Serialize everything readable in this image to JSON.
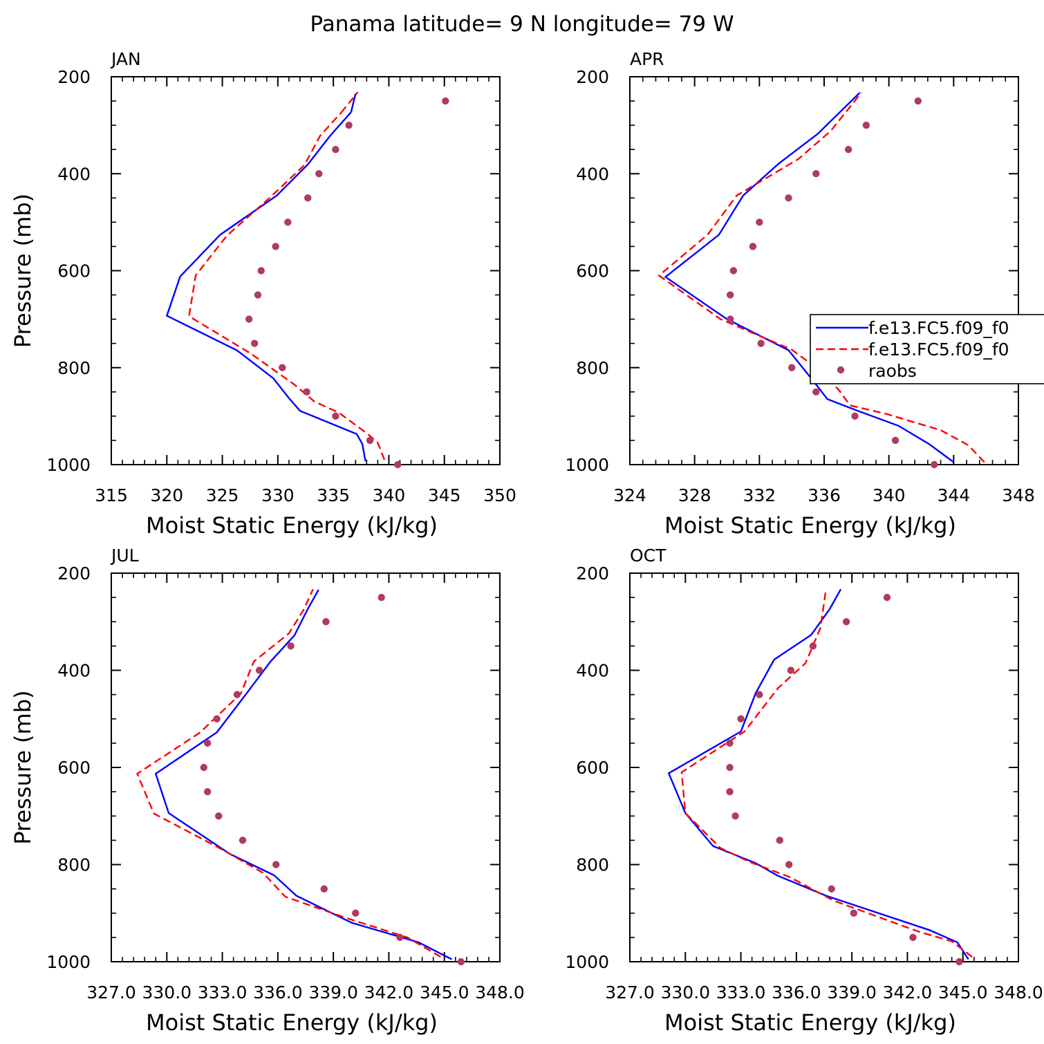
{
  "figure_title": "Panama  latitude= 9 N longitude= 79 W",
  "colors": {
    "series1": "#0000ff",
    "series2": "#ff0000",
    "raobs": "#b03a60",
    "axis": "#000000"
  },
  "legend": {
    "placement": "right of APR panel, overlapping plot area",
    "entries": [
      "f.e13.FC5.f09_f0",
      "f.e13.FC5.f09_f0",
      "raobs"
    ]
  },
  "chart_data": [
    {
      "type": "line",
      "panel": "JAN",
      "title": "JAN",
      "xlabel": "Moist Static Energy (kJ/kg)",
      "ylabel": "Pressure (mb)",
      "xlim": [
        315,
        350
      ],
      "ylim": [
        1000,
        200
      ],
      "xticks": [
        "315",
        "320",
        "325",
        "330",
        "335",
        "340",
        "345",
        "350"
      ],
      "yticks": [
        "200",
        "400",
        "600",
        "800",
        "1000"
      ],
      "series": [
        {
          "style": "solid",
          "x": [
            337.9,
            337.6,
            337.1,
            332.0,
            331.0,
            329.6,
            326.3,
            320.0,
            321.2,
            324.8,
            329.9,
            332.7,
            334.7,
            336.6
          ],
          "y": [
            993,
            957,
            937,
            889,
            863,
            822,
            764,
            693,
            612,
            526,
            445,
            381,
            322,
            273
          ]
        },
        {
          "style": "dashed",
          "x": [
            339.6,
            339.0,
            338.0,
            335.5,
            333.3,
            331.5,
            327.5,
            322.0,
            322.6,
            325.4,
            329.3,
            332.4,
            333.8,
            335.7
          ],
          "y": [
            990,
            955,
            935,
            893,
            870,
            835,
            770,
            694,
            610,
            528,
            449,
            382,
            322,
            274
          ]
        },
        {
          "style": "solid",
          "x": [
            336.6,
            337.0
          ],
          "y": [
            273,
            235
          ]
        },
        {
          "style": "dashed",
          "x": [
            335.7,
            337.2
          ],
          "y": [
            274,
            232
          ]
        },
        {
          "style": "dots",
          "x": [
            340.8,
            338.3,
            335.2,
            332.6,
            330.4,
            327.9,
            327.4,
            328.2,
            328.5,
            329.8,
            330.9,
            332.7,
            333.7,
            335.2,
            336.4,
            345.1
          ],
          "y": [
            1000,
            950,
            900,
            850,
            800,
            750,
            700,
            650,
            600,
            550,
            500,
            450,
            400,
            350,
            300,
            250
          ]
        }
      ]
    },
    {
      "type": "line",
      "panel": "APR",
      "title": "APR",
      "xlabel": "Moist Static Energy (kJ/kg)",
      "ylabel": "",
      "xlim": [
        324,
        348
      ],
      "ylim": [
        1000,
        200
      ],
      "xticks": [
        "324",
        "328",
        "332",
        "336",
        "340",
        "344",
        "348"
      ],
      "yticks": [
        "200",
        "400",
        "600",
        "800",
        "1000"
      ],
      "series": [
        {
          "style": "solid",
          "x": [
            344.0,
            342.5,
            340.6,
            338.0,
            336.2,
            335.3,
            333.8,
            330.0,
            326.2,
            329.5,
            331.0,
            333.2,
            335.6,
            338.2
          ],
          "y": [
            995,
            958,
            920,
            888,
            865,
            826,
            764,
            700,
            613,
            526,
            445,
            379,
            318,
            233
          ]
        },
        {
          "style": "dashed",
          "x": [
            345.9,
            344.9,
            343.2,
            339.8,
            337.6,
            337.0,
            336.0,
            334.0,
            329.6,
            325.8,
            328.8,
            330.6,
            334.4,
            336.4,
            338.3
          ],
          "y": [
            995,
            960,
            929,
            895,
            878,
            850,
            812,
            763,
            700,
            610,
            526,
            445,
            370,
            312,
            233
          ]
        },
        {
          "style": "dots",
          "x": [
            342.8,
            340.4,
            337.9,
            335.5,
            334.0,
            332.1,
            330.2,
            330.2,
            330.4,
            331.6,
            332.0,
            333.8,
            335.5,
            337.5,
            338.6,
            341.8
          ],
          "y": [
            1000,
            950,
            900,
            850,
            800,
            750,
            700,
            650,
            600,
            550,
            500,
            450,
            400,
            350,
            300,
            250
          ]
        }
      ]
    },
    {
      "type": "line",
      "panel": "JUL",
      "title": "JUL",
      "xlabel": "Moist Static Energy (kJ/kg)",
      "ylabel": "Pressure (mb)",
      "xlim": [
        327.0,
        348.0
      ],
      "ylim": [
        1000,
        200
      ],
      "xticks": [
        "327.0",
        "330.0",
        "333.0",
        "336.0",
        "339.0",
        "342.0",
        "345.0",
        "348.0"
      ],
      "yticks": [
        "200",
        "400",
        "600",
        "800",
        "1000"
      ],
      "series": [
        {
          "style": "solid",
          "x": [
            345.4,
            343.6,
            340.0,
            337.0,
            335.8,
            333.4,
            330.1,
            329.4,
            332.7,
            334.3,
            335.6,
            336.9,
            337.6,
            338.2
          ],
          "y": [
            995,
            960,
            920,
            864,
            822,
            778,
            694,
            613,
            528,
            448,
            382,
            328,
            275,
            234
          ]
        },
        {
          "style": "dashed",
          "x": [
            344.8,
            343.0,
            339.7,
            336.4,
            335.2,
            332.8,
            329.3,
            328.4,
            331.8,
            334.0,
            334.7,
            336.6,
            337.4,
            337.9
          ],
          "y": [
            990,
            950,
            910,
            866,
            817,
            765,
            695,
            613,
            528,
            448,
            382,
            324,
            275,
            233
          ]
        },
        {
          "style": "dots",
          "x": [
            345.9,
            342.6,
            340.2,
            338.5,
            335.9,
            334.1,
            332.8,
            332.2,
            332.0,
            332.2,
            332.7,
            333.8,
            335.0,
            336.7,
            338.6,
            341.6
          ],
          "y": [
            1000,
            950,
            900,
            850,
            800,
            750,
            700,
            650,
            600,
            550,
            500,
            450,
            400,
            350,
            300,
            250
          ]
        }
      ]
    },
    {
      "type": "line",
      "panel": "OCT",
      "title": "OCT",
      "xlabel": "Moist Static Energy (kJ/kg)",
      "ylabel": "",
      "xlim": [
        327.0,
        348.0
      ],
      "ylim": [
        1000,
        200
      ],
      "xticks": [
        "327.0",
        "330.0",
        "333.0",
        "336.0",
        "339.0",
        "342.0",
        "345.0",
        "348.0"
      ],
      "yticks": [
        "200",
        "400",
        "600",
        "800",
        "1000"
      ],
      "series": [
        {
          "style": "solid",
          "x": [
            345.3,
            344.7,
            343.2,
            337.6,
            335.0,
            333.8,
            331.5,
            330.0,
            329.1,
            333.0,
            333.8,
            334.8,
            336.8,
            337.8,
            338.4
          ],
          "y": [
            995,
            960,
            935,
            864,
            823,
            797,
            762,
            694,
            612,
            526,
            447,
            378,
            327,
            274,
            233
          ]
        },
        {
          "style": "dashed",
          "x": [
            345.5,
            344.4,
            342.6,
            338.0,
            335.6,
            333.5,
            331.9,
            330.0,
            329.8,
            333.2,
            335.0,
            336.5,
            337.3,
            337.6
          ],
          "y": [
            990,
            958,
            938,
            874,
            825,
            795,
            766,
            694,
            610,
            526,
            437,
            385,
            313,
            233
          ]
        },
        {
          "style": "dots",
          "x": [
            344.8,
            342.3,
            339.1,
            337.9,
            335.6,
            335.1,
            332.7,
            332.4,
            332.4,
            332.4,
            333.0,
            334.0,
            335.7,
            336.9,
            338.7,
            340.9
          ],
          "y": [
            1000,
            950,
            900,
            850,
            800,
            750,
            700,
            650,
            600,
            550,
            500,
            450,
            400,
            350,
            300,
            250
          ]
        }
      ]
    }
  ]
}
